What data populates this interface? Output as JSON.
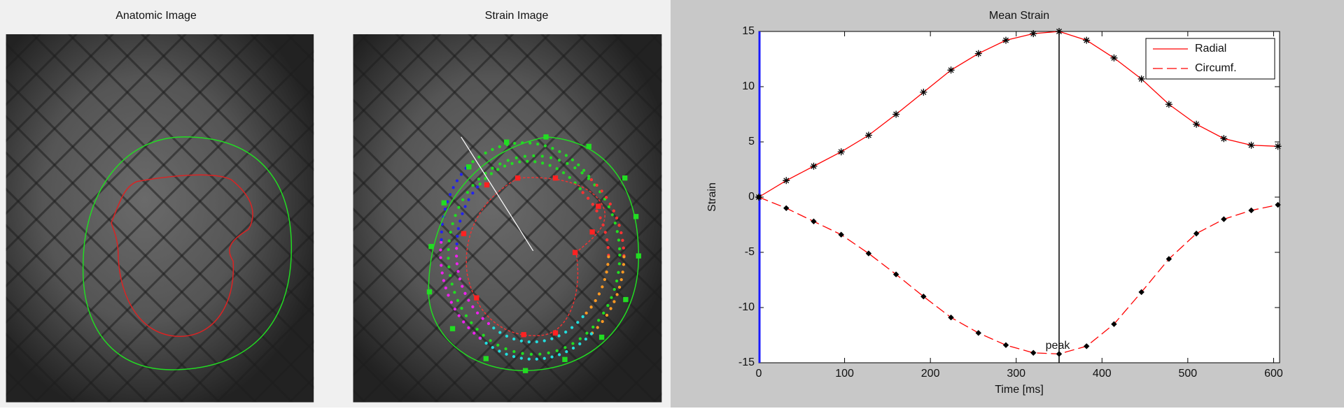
{
  "panels": [
    {
      "title": "Anatomic Image"
    },
    {
      "title": "Strain Image"
    }
  ],
  "chart_data": {
    "type": "line",
    "title": "Mean Strain",
    "xlabel": "Time [ms]",
    "ylabel": "Strain",
    "x": [
      0,
      32,
      64,
      96,
      128,
      160,
      192,
      224,
      256,
      288,
      320,
      350,
      382,
      414,
      446,
      478,
      510,
      542,
      574,
      605
    ],
    "series": [
      {
        "name": "Radial",
        "color": "#ff0000",
        "linestyle": "solid",
        "marker": "asterisk",
        "marker_color": "#000000",
        "values": [
          0,
          1.5,
          2.8,
          4.1,
          5.6,
          7.5,
          9.5,
          11.5,
          13.0,
          14.2,
          14.8,
          15.0,
          14.2,
          12.6,
          10.7,
          8.4,
          6.6,
          5.3,
          4.7,
          4.6
        ]
      },
      {
        "name": "Circumf.",
        "color": "#ff0000",
        "linestyle": "dashed",
        "marker": "dot",
        "marker_color": "#000000",
        "values": [
          0,
          -1.0,
          -2.2,
          -3.4,
          -5.1,
          -7.0,
          -9.0,
          -10.9,
          -12.3,
          -13.4,
          -14.1,
          -14.2,
          -13.5,
          -11.5,
          -8.6,
          -5.6,
          -3.3,
          -2.0,
          -1.2,
          -0.7
        ]
      }
    ],
    "xlim": [
      0,
      607
    ],
    "ylim": [
      -15,
      15
    ],
    "xticks": [
      0,
      100,
      200,
      300,
      400,
      500,
      600
    ],
    "yticks": [
      -15,
      -10,
      -5,
      0,
      5,
      10,
      15
    ],
    "grid": false,
    "legend": "upper right",
    "annotations": [
      {
        "text": "peak",
        "x": 350
      }
    ]
  }
}
